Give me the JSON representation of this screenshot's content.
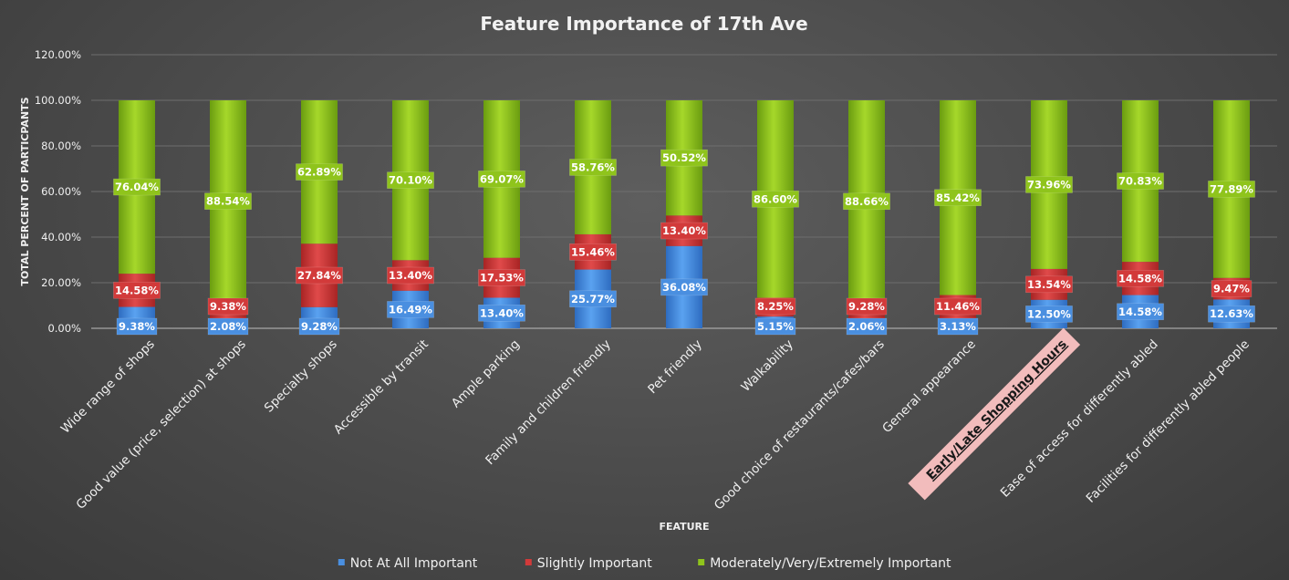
{
  "chart_data": {
    "type": "bar",
    "stacked": true,
    "title": "Feature Importance of 17th Ave",
    "xlabel": "FEATURE",
    "ylabel": "TOTAL PERCENT OF PARTICPANTS",
    "ylim": [
      0,
      120
    ],
    "yticks": [
      "0.00%",
      "20.00%",
      "40.00%",
      "60.00%",
      "80.00%",
      "100.00%",
      "120.00%"
    ],
    "grid": true,
    "legend_position": "bottom",
    "categories": [
      "Wide range of shops",
      "Good value (price, selection) at shops",
      "Specialty shops",
      "Accessible by transit",
      "Ample parking",
      "Family and children friendly",
      "Pet friendly",
      "Walkability",
      "Good choice of restaurants/cafes/bars",
      "General appearance",
      "Early/Late Shopping Hours",
      "Ease of access for differently abled",
      "Facilities for differently abled people"
    ],
    "highlighted_category": "Early/Late Shopping Hours",
    "series": [
      {
        "name": "Not At All Important",
        "color": "#4a8fe0",
        "values": [
          9.38,
          2.08,
          9.28,
          16.49,
          13.4,
          25.77,
          36.08,
          5.15,
          2.06,
          3.13,
          12.5,
          14.58,
          12.63
        ],
        "labels": [
          "9.38%",
          "2.08%",
          "9.28%",
          "16.49%",
          "13.40%",
          "25.77%",
          "36.08%",
          "5.15%",
          "2.06%",
          "3.13%",
          "12.50%",
          "14.58%",
          "12.63%"
        ]
      },
      {
        "name": "Slightly Important",
        "color": "#d23a3a",
        "values": [
          14.58,
          9.38,
          27.84,
          13.4,
          17.53,
          15.46,
          13.4,
          8.25,
          9.28,
          11.46,
          13.54,
          14.58,
          9.47
        ],
        "labels": [
          "14.58%",
          "9.38%",
          "27.84%",
          "13.40%",
          "17.53%",
          "15.46%",
          "13.40%",
          "8.25%",
          "9.28%",
          "11.46%",
          "13.54%",
          "14.58%",
          "9.47%"
        ]
      },
      {
        "name": "Moderately/Very/Extremely Important",
        "color": "#8fc41c",
        "values": [
          76.04,
          88.54,
          62.89,
          70.1,
          69.07,
          58.76,
          50.52,
          86.6,
          88.66,
          85.42,
          73.96,
          70.83,
          77.89
        ],
        "labels": [
          "76.04%",
          "88.54%",
          "62.89%",
          "70.10%",
          "69.07%",
          "58.76%",
          "50.52%",
          "86.60%",
          "88.66%",
          "85.42%",
          "73.96%",
          "70.83%",
          "77.89%"
        ]
      }
    ]
  }
}
